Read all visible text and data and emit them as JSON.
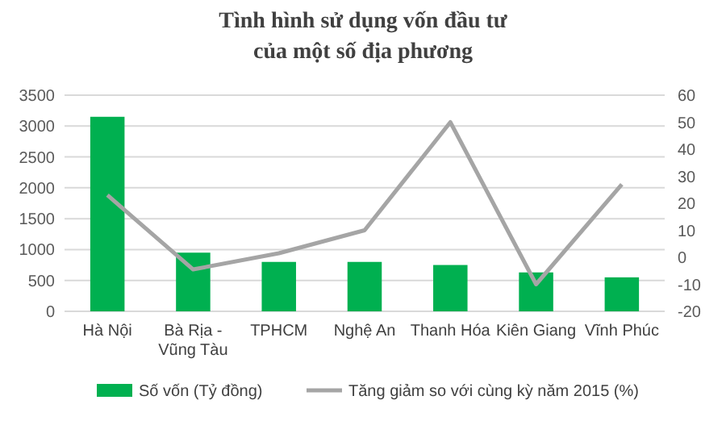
{
  "chart_data": {
    "type": "bar",
    "title": "Tình hình sử dụng vốn đầu tư",
    "subtitle": "của một số địa phương",
    "categories": [
      "Hà Nội",
      "Bà Rịa - Vũng Tàu",
      "TPHCM",
      "Nghệ An",
      "Thanh Hóa",
      "Kiên Giang",
      "Vĩnh Phúc"
    ],
    "series": [
      {
        "name": "Số vốn (Tỷ đồng)",
        "color": "#00b050",
        "values": [
          3150,
          950,
          800,
          800,
          750,
          630,
          550
        ]
      },
      {
        "name": "Tăng giảm so với cùng kỳ năm 2015 (%)",
        "type": "line",
        "axis": "y2",
        "color": "#a5a5a5",
        "values": [
          23,
          -4.5,
          1.5,
          10,
          50,
          -10,
          27
        ]
      }
    ],
    "ylim": [
      0,
      3500
    ],
    "yticks": [
      0,
      500,
      1000,
      1500,
      2000,
      2500,
      3000,
      3500
    ],
    "y2lim": [
      -20,
      60
    ],
    "y2ticks": [
      -20,
      -10,
      0,
      10,
      20,
      30,
      40,
      50,
      60
    ],
    "grid": "y",
    "legend": "bottom",
    "marker": "none",
    "line_style": "solid"
  }
}
